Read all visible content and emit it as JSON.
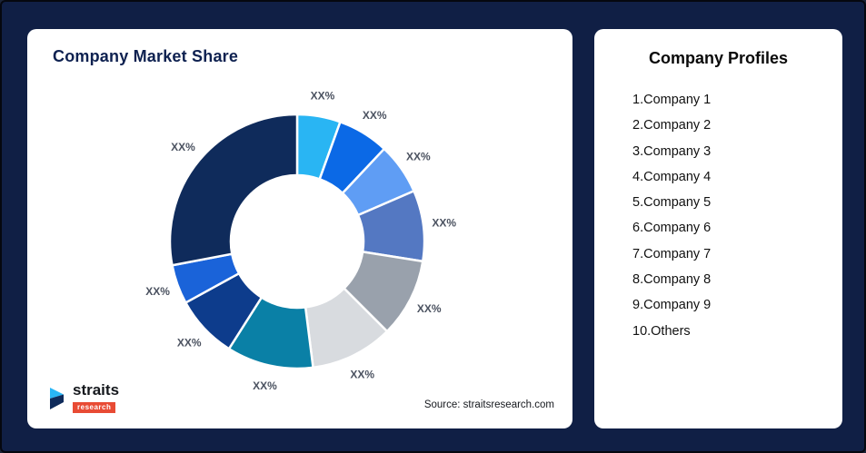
{
  "page": {
    "background_color": "#101F45",
    "card_color": "#FFFFFF"
  },
  "left_card": {
    "title": "Company Market Share",
    "source": "Source: straitsresearch.com",
    "logo": {
      "name": "straits",
      "sub": "research"
    }
  },
  "right_card": {
    "title": "Company Profiles",
    "items": [
      "1.Company 1",
      "2.Company 2",
      "3.Company 3",
      "4.Company 4",
      "5.Company 5",
      "6.Company 6",
      "7.Company 7",
      "8.Company 8",
      "9.Company 9",
      "10.Others"
    ]
  },
  "chart_data": {
    "type": "pie",
    "subtype": "donut",
    "title": "Company Market Share",
    "value_labels": [
      "XX%",
      "XX%",
      "XX%",
      "XX%",
      "XX%",
      "XX%",
      "XX%",
      "XX%",
      "XX%",
      "XX%"
    ],
    "values_pct_estimated": [
      5.5,
      6.5,
      6.5,
      9,
      10,
      10.5,
      11,
      8,
      5,
      28
    ],
    "colors": [
      "#29B5F3",
      "#0B69E6",
      "#5F9DF4",
      "#5478C2",
      "#99A1AC",
      "#D8DBDF",
      "#0A80A6",
      "#0D3C8C",
      "#1A63D9",
      "#0F2B5B"
    ],
    "start_angle_deg": 0,
    "direction": "clockwise",
    "donut_hole_ratio": 0.52,
    "gap_color": "#FFFFFF",
    "label_color": "#4B5260",
    "legend_position": "none"
  }
}
